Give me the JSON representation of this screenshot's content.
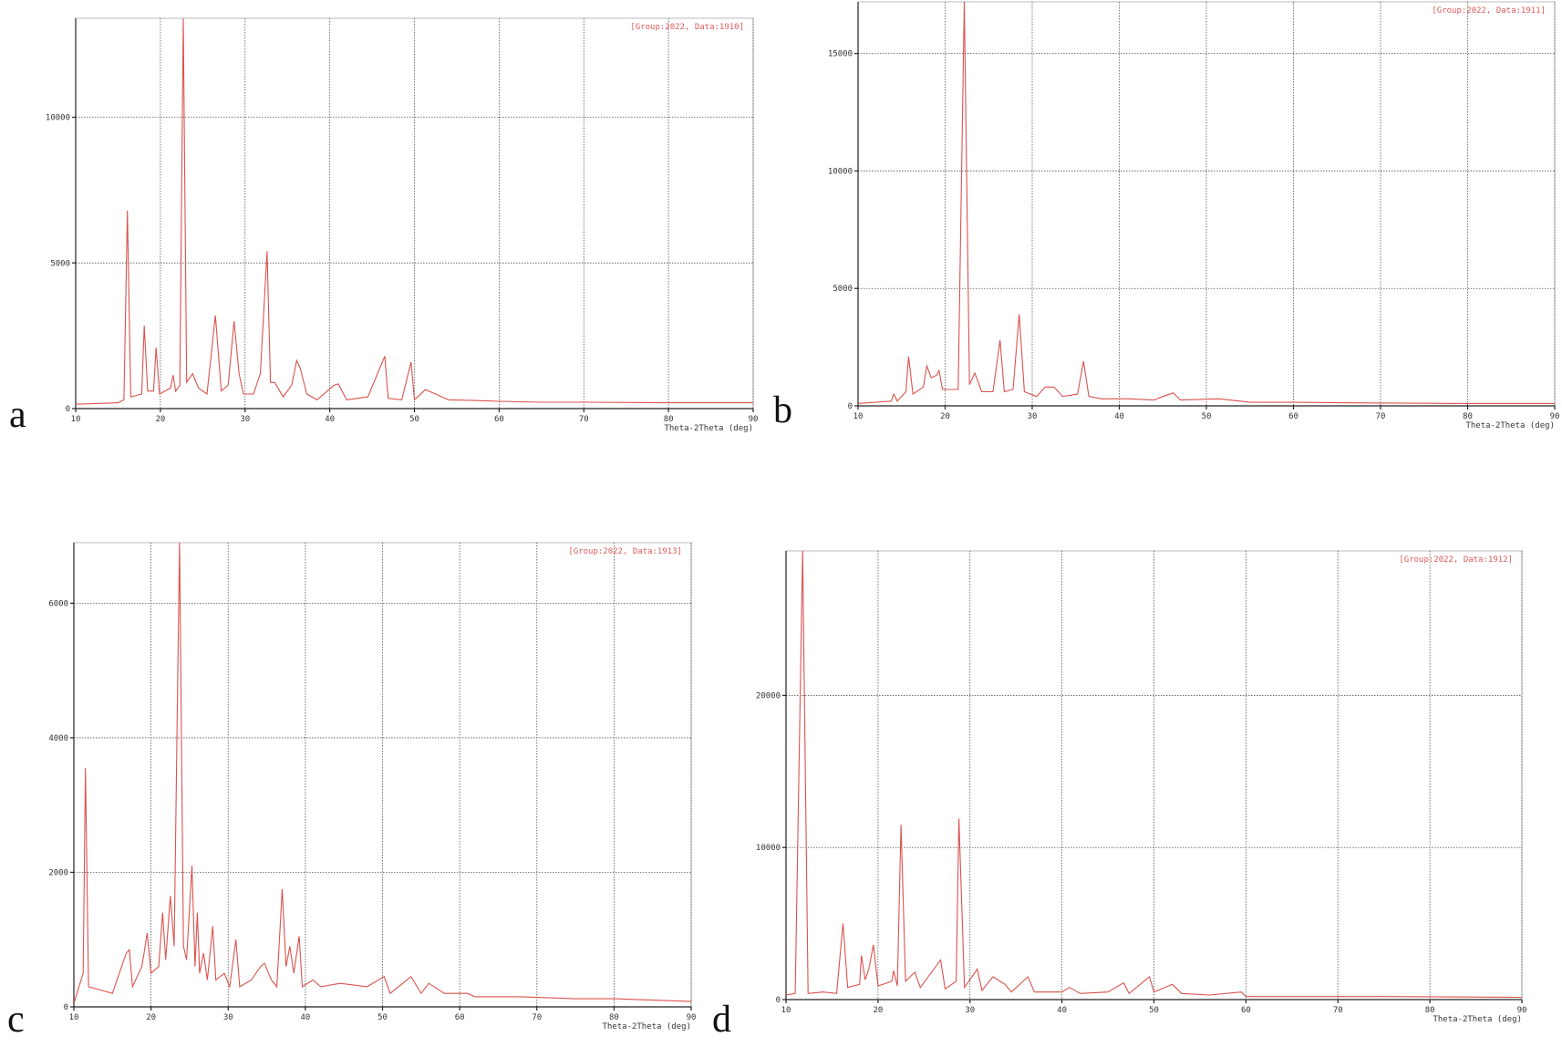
{
  "chart_data": [
    {
      "type": "line",
      "panel": "a",
      "annotation": "[Group:2022, Data:1910]",
      "xlabel": "Theta-2Theta (deg)",
      "color": "#d9534f",
      "grid": true,
      "xlim": [
        10,
        90
      ],
      "xticks": [
        10,
        20,
        30,
        40,
        50,
        60,
        70,
        80,
        90
      ],
      "ylim": [
        0,
        13400
      ],
      "yticks": [
        0,
        5000,
        10000
      ],
      "x": [
        10,
        15,
        15.7,
        16.1,
        16.5,
        17.8,
        18.1,
        18.5,
        19.2,
        19.5,
        19.9,
        21.2,
        21.5,
        21.8,
        22.3,
        22.7,
        23.1,
        23.8,
        24.5,
        25.5,
        26.5,
        27.2,
        28.0,
        28.7,
        29.3,
        29.8,
        31.0,
        31.8,
        32.6,
        33.0,
        33.5,
        34.5,
        35.5,
        36.1,
        36.5,
        37.3,
        38.5,
        40.5,
        41.0,
        42,
        44.5,
        46.5,
        46.9,
        48.5,
        49.6,
        50.0,
        51.3,
        52.5,
        54,
        57,
        60,
        65,
        70,
        80,
        90
      ],
      "values": [
        150,
        200,
        300,
        6800,
        400,
        500,
        2850,
        600,
        600,
        2100,
        500,
        700,
        1150,
        600,
        800,
        13400,
        900,
        1200,
        700,
        500,
        3200,
        600,
        800,
        3000,
        1200,
        500,
        500,
        1200,
        5400,
        900,
        900,
        400,
        800,
        1650,
        1400,
        500,
        300,
        800,
        850,
        300,
        400,
        1800,
        350,
        300,
        1600,
        300,
        650,
        500,
        300,
        280,
        250,
        220,
        220,
        200,
        200
      ]
    },
    {
      "type": "line",
      "panel": "b",
      "annotation": "[Group:2022, Data:1911]",
      "xlabel": "Theta-2Theta (deg)",
      "color": "#d9534f",
      "grid": true,
      "xlim": [
        10,
        90
      ],
      "xticks": [
        10,
        20,
        30,
        40,
        50,
        60,
        70,
        80,
        90
      ],
      "ylim": [
        0,
        17200
      ],
      "yticks": [
        0,
        5000,
        10000,
        15000
      ],
      "x": [
        10,
        12,
        13.8,
        14.1,
        14.5,
        15.5,
        15.8,
        16.3,
        17.5,
        17.9,
        18.4,
        19.0,
        19.3,
        19.7,
        21.5,
        22.2,
        22.8,
        23.4,
        24.2,
        25.5,
        26.3,
        26.8,
        27.8,
        28.5,
        29.1,
        30.5,
        31.5,
        32.5,
        33.5,
        35.2,
        35.9,
        36.5,
        38,
        41,
        44,
        45,
        46.2,
        47,
        51.5,
        55,
        60,
        70,
        80,
        90
      ],
      "values": [
        100,
        150,
        200,
        500,
        200,
        600,
        2100,
        500,
        800,
        1700,
        1200,
        1300,
        1500,
        700,
        700,
        17200,
        900,
        1400,
        600,
        600,
        2800,
        600,
        700,
        3900,
        600,
        400,
        800,
        800,
        400,
        500,
        1900,
        400,
        300,
        300,
        250,
        400,
        550,
        250,
        300,
        150,
        150,
        120,
        100,
        100
      ]
    },
    {
      "type": "line",
      "panel": "c",
      "annotation": "[Group:2022, Data:1913]",
      "xlabel": "Theta-2Theta (deg)",
      "color": "#d9534f",
      "grid": true,
      "xlim": [
        10,
        90
      ],
      "xticks": [
        10,
        20,
        30,
        40,
        50,
        60,
        70,
        80,
        90
      ],
      "ylim": [
        0,
        6900
      ],
      "yticks": [
        0,
        2000,
        4000,
        6000
      ],
      "x": [
        10,
        11.2,
        11.5,
        11.9,
        13.5,
        15,
        16.8,
        17.2,
        17.6,
        18.8,
        19.1,
        19.5,
        20,
        21,
        21.5,
        21.9,
        22.5,
        23,
        23.7,
        24.2,
        24.6,
        25.3,
        25.7,
        26,
        26.3,
        26.8,
        27.3,
        28,
        28.4,
        29.5,
        30.2,
        31,
        31.5,
        33,
        34.2,
        34.7,
        35.6,
        36.3,
        37,
        37.5,
        38,
        38.5,
        39.2,
        39.6,
        41,
        42,
        44.5,
        48,
        50.2,
        51,
        53.7,
        55,
        56,
        58,
        61,
        62,
        68,
        75,
        80,
        90
      ],
      "values": [
        50,
        500,
        3550,
        300,
        250,
        200,
        800,
        850,
        300,
        600,
        800,
        1100,
        500,
        600,
        1400,
        700,
        1650,
        900,
        6900,
        900,
        700,
        2100,
        600,
        1400,
        500,
        800,
        400,
        1200,
        400,
        500,
        300,
        1000,
        300,
        400,
        600,
        650,
        400,
        300,
        1750,
        600,
        900,
        500,
        1050,
        300,
        400,
        300,
        350,
        300,
        450,
        200,
        450,
        200,
        350,
        200,
        200,
        150,
        150,
        120,
        120,
        80
      ]
    },
    {
      "type": "line",
      "panel": "d",
      "annotation": "[Group:2022, Data:1912]",
      "xlabel": "Theta-2Theta (deg)",
      "color": "#d9534f",
      "grid": true,
      "xlim": [
        10,
        90
      ],
      "xticks": [
        10,
        20,
        30,
        40,
        50,
        60,
        70,
        80,
        90
      ],
      "ylim": [
        0,
        29500
      ],
      "yticks": [
        0,
        10000,
        20000
      ],
      "x": [
        10,
        11,
        11.8,
        12.4,
        14,
        15.5,
        16.2,
        16.7,
        18,
        18.2,
        18.6,
        19,
        19.5,
        20,
        21.5,
        21.7,
        22.1,
        22.5,
        23,
        24,
        24.6,
        26.8,
        27.3,
        28.5,
        28.8,
        29.4,
        30.8,
        31.3,
        32.5,
        33.8,
        34.5,
        36.3,
        37,
        40,
        40.8,
        42,
        45,
        46.7,
        47.3,
        49.5,
        50,
        52,
        53,
        56,
        59.5,
        60,
        65,
        75,
        90
      ],
      "values": [
        300,
        400,
        29500,
        400,
        500,
        400,
        5000,
        800,
        1000,
        2900,
        1300,
        2000,
        3600,
        900,
        1200,
        1900,
        900,
        11500,
        1200,
        1800,
        800,
        2600,
        700,
        1200,
        11900,
        800,
        2000,
        600,
        1500,
        1000,
        500,
        1500,
        500,
        500,
        800,
        400,
        500,
        1100,
        400,
        1500,
        500,
        1000,
        400,
        300,
        500,
        200,
        200,
        200,
        150
      ]
    }
  ]
}
